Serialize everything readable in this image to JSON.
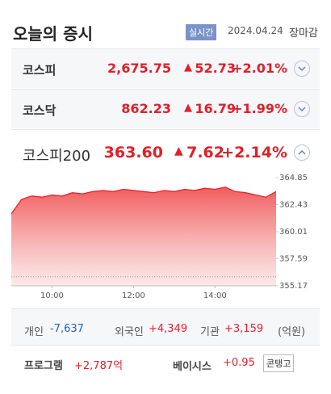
{
  "header": {
    "title": "오늘의 증시",
    "badge": "실시간",
    "date": "2024.04.24",
    "status": "장마감"
  },
  "indices": [
    {
      "name": "코스피",
      "value": "2,675.75",
      "change": "52.73",
      "rate": "+2.01%"
    },
    {
      "name": "코스닥",
      "value": "862.23",
      "change": "16.79",
      "rate": "+1.99%"
    },
    {
      "name": "코스피200",
      "value": "363.60",
      "change": "7.62",
      "rate": "+2.14%"
    }
  ],
  "chart_data": {
    "type": "line",
    "color": "#e8202a",
    "x": [
      9.0,
      9.25,
      9.5,
      9.75,
      10.0,
      10.25,
      10.5,
      10.75,
      11.0,
      11.25,
      11.5,
      11.75,
      12.0,
      12.25,
      12.5,
      12.75,
      13.0,
      13.25,
      13.5,
      13.75,
      14.0,
      14.25,
      14.5,
      14.75,
      15.0,
      15.25,
      15.5
    ],
    "series": [
      {
        "color": "#e8202a",
        "values": [
          361.6,
          362.9,
          363.2,
          363.1,
          363.3,
          363.2,
          363.5,
          363.4,
          363.6,
          363.7,
          363.6,
          363.8,
          363.7,
          363.6,
          363.5,
          363.7,
          363.6,
          363.8,
          363.7,
          363.9,
          363.8,
          364.0,
          363.6,
          363.5,
          363.3,
          363.1,
          363.6
        ]
      }
    ],
    "xlim": [
      9.0,
      15.5
    ],
    "xticks": [
      {
        "value": 10,
        "label": "10:00"
      },
      {
        "value": 12,
        "label": "12:00"
      },
      {
        "value": 14,
        "label": "14:00"
      }
    ],
    "ylim": [
      355.17,
      364.85
    ],
    "yticks": [
      355.17,
      357.59,
      360.01,
      362.43,
      364.85
    ],
    "reference_line": 355.98,
    "grid": false
  },
  "investors": {
    "items": [
      {
        "label": "개인",
        "value": "-7,637"
      },
      {
        "label": "외국인",
        "value": "+4,349"
      },
      {
        "label": "기관",
        "value": "+3,159"
      }
    ],
    "unit": "(억원)"
  },
  "program": {
    "label": "프로그램",
    "value": "+2,787억",
    "basis_label": "베이시스",
    "basis_value": "+0.95",
    "badge": "콘탱고"
  }
}
